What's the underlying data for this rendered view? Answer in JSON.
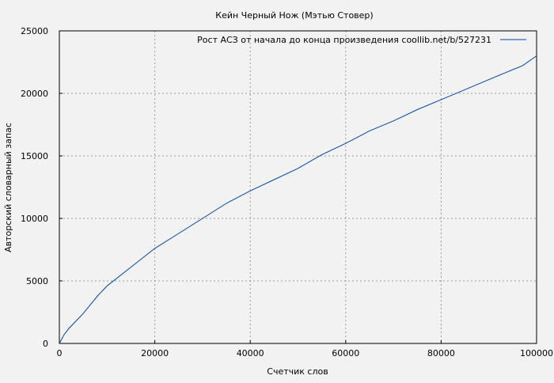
{
  "chart_data": {
    "type": "line",
    "title": "Кейн Черный Нож (Мэтью Стовер)",
    "xlabel": "Счетчик слов",
    "ylabel": "Авторский словарный запас",
    "xlim": [
      0,
      100000
    ],
    "ylim": [
      0,
      25000
    ],
    "xticks": [
      "0",
      "20000",
      "40000",
      "60000",
      "80000",
      "100000"
    ],
    "yticks": [
      "0",
      "5000",
      "10000",
      "15000",
      "20000",
      "25000"
    ],
    "grid": true,
    "legend_position": "top-right",
    "series": [
      {
        "name": "Рост АСЗ от начала до конца произведения coollib.net/b/527231",
        "color": "#0044aa",
        "x": [
          0,
          1000,
          2000,
          3500,
          5000,
          8000,
          10000,
          15000,
          20000,
          25000,
          30000,
          35000,
          40000,
          45000,
          50000,
          55000,
          60000,
          65000,
          70000,
          75000,
          80000,
          85000,
          90000,
          95000,
          97000,
          100000
        ],
        "y": [
          0,
          700,
          1200,
          1800,
          2400,
          3800,
          4600,
          6100,
          7600,
          8800,
          10000,
          11200,
          12200,
          13100,
          14000,
          15100,
          16000,
          17000,
          17800,
          18700,
          19500,
          20300,
          21100,
          21900,
          22200,
          23000
        ]
      }
    ]
  }
}
